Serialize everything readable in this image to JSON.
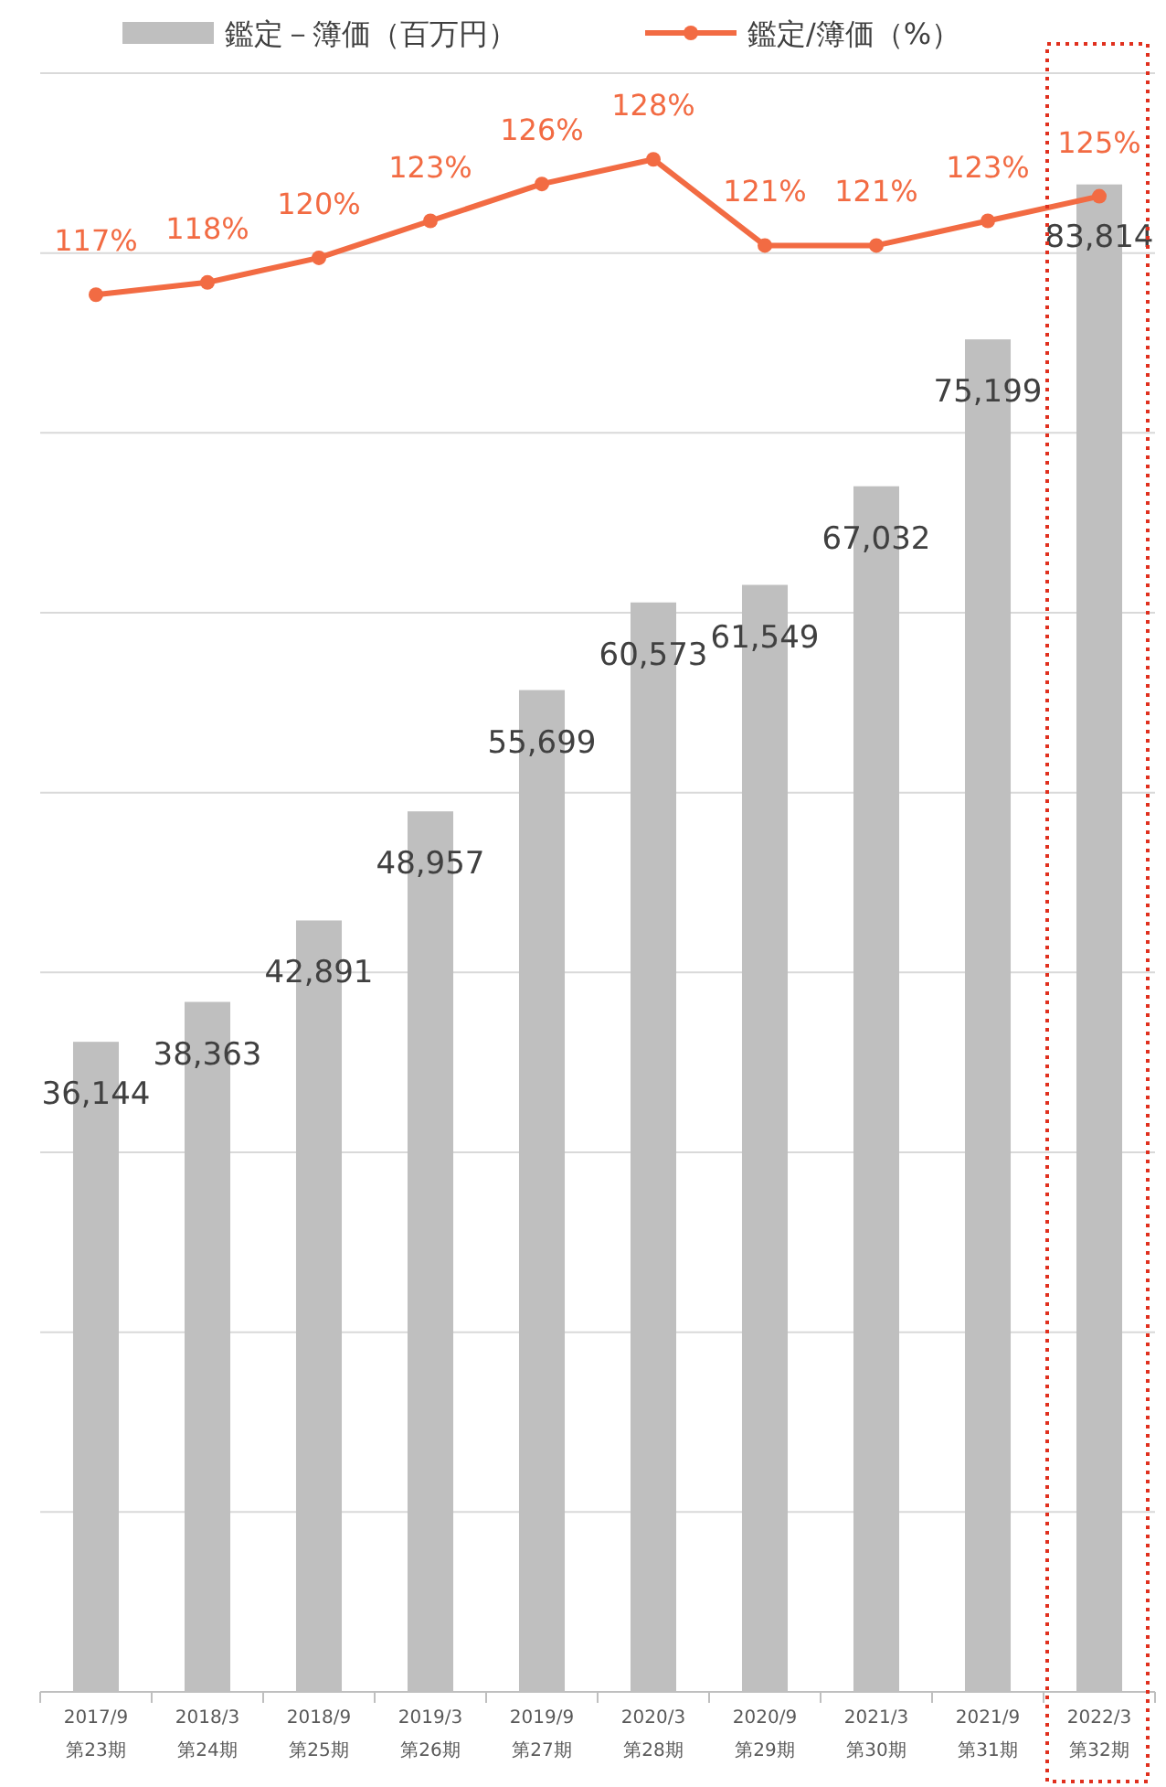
{
  "chart_data": {
    "type": "bar",
    "categories": [
      "2017/9\n第23期",
      "2018/3\n第24期",
      "2018/9\n第25期",
      "2019/3\n第26期",
      "2019/9\n第27期",
      "2020/3\n第28期",
      "2020/9\n第29期",
      "2021/3\n第30期",
      "2021/9\n第31期",
      "2022/3\n第32期"
    ],
    "series": [
      {
        "name": "鑑定－簿価（百万円）",
        "color": "#bfbfbf",
        "values": [
          36144,
          38363,
          42891,
          48957,
          55699,
          60573,
          61549,
          67032,
          75199,
          83814
        ],
        "value_labels": [
          "36,144",
          "38,363",
          "42,891",
          "48,957",
          "55,699",
          "60,573",
          "61,549",
          "67,032",
          "75,199",
          "83,814"
        ]
      },
      {
        "name": "鑑定/簿価（%）",
        "type": "line",
        "axis": "y2",
        "color": "#f26b43",
        "marker": "circle",
        "values": [
          117,
          118,
          120,
          123,
          126,
          128,
          121,
          121,
          123,
          125
        ],
        "value_labels": [
          "117%",
          "118%",
          "120%",
          "123%",
          "126%",
          "128%",
          "121%",
          "121%",
          "123%",
          "125%"
        ]
      }
    ],
    "ylim": [
      0,
      90000
    ],
    "yticks": [
      {
        "value": 0,
        "label": null
      },
      {
        "value": 10000,
        "label": null
      },
      {
        "value": 20000,
        "label": null
      },
      {
        "value": 30000,
        "label": null
      },
      {
        "value": 40000,
        "label": null
      },
      {
        "value": 50000,
        "label": null
      },
      {
        "value": 60000,
        "label": null
      },
      {
        "value": 70000,
        "label": null
      },
      {
        "value": 80000,
        "label": null
      },
      {
        "value": 90000,
        "label": null
      }
    ],
    "y2lim": [
      3.5,
      135
    ],
    "grid": "y",
    "legend": "top",
    "tick_labels": "x"
  }
}
